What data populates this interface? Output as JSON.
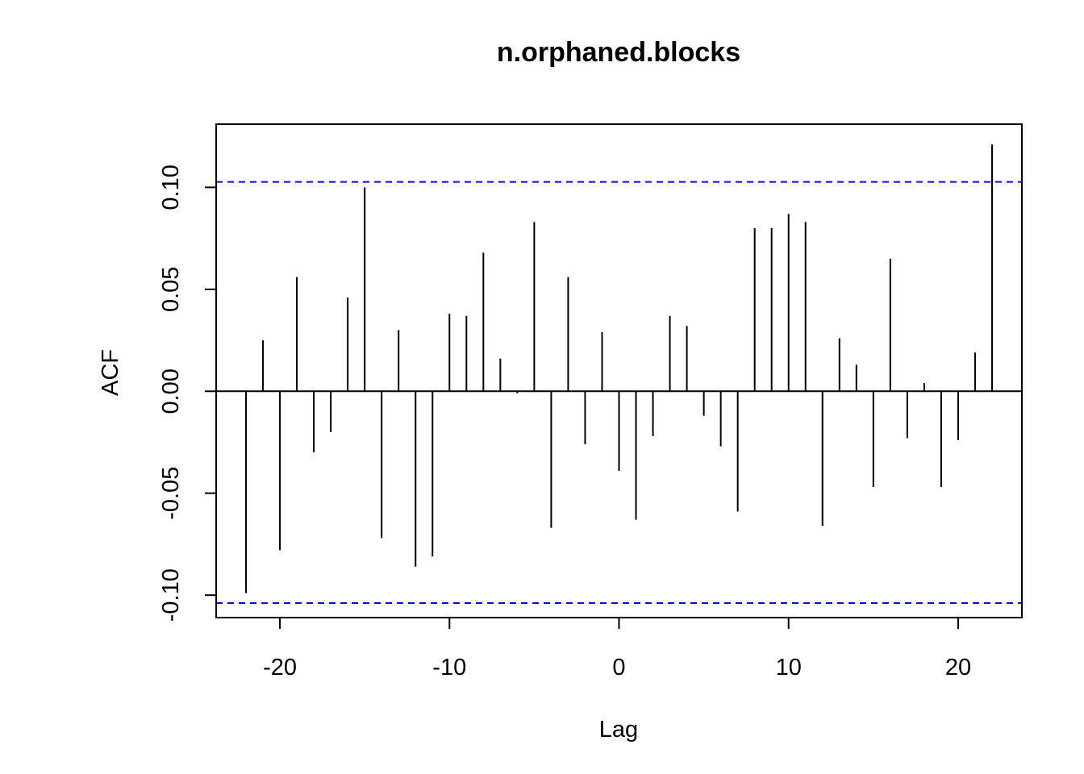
{
  "chart_data": {
    "type": "bar",
    "title": "n.orphaned.blocks",
    "xlabel": "Lag",
    "ylabel": "ACF",
    "xlim": [
      -23.76,
      23.76
    ],
    "ylim": [
      -0.111,
      0.131
    ],
    "x_ticks": [
      -20,
      -10,
      0,
      10,
      20
    ],
    "x_tick_labels": [
      "-20",
      "-10",
      "0",
      "10",
      "20"
    ],
    "y_ticks": [
      -0.1,
      -0.05,
      0.0,
      0.05,
      0.1
    ],
    "y_tick_labels": [
      "-0.10",
      "-0.05",
      "0.00",
      "0.05",
      "0.10"
    ],
    "confidence_bounds": [
      0.1027,
      -0.1039
    ],
    "confidence_color": "#0000ff",
    "grid": false,
    "lags": [
      -22,
      -21,
      -20,
      -19,
      -18,
      -17,
      -16,
      -15,
      -14,
      -13,
      -12,
      -11,
      -10,
      -9,
      -8,
      -7,
      -6,
      -5,
      -4,
      -3,
      -2,
      -1,
      0,
      1,
      2,
      3,
      4,
      5,
      6,
      7,
      8,
      9,
      10,
      11,
      12,
      13,
      14,
      15,
      16,
      17,
      18,
      19,
      20,
      21,
      22
    ],
    "values": [
      -0.099,
      0.025,
      -0.078,
      0.056,
      -0.03,
      -0.02,
      0.046,
      0.1,
      -0.072,
      0.03,
      -0.086,
      -0.081,
      0.038,
      0.037,
      0.068,
      0.016,
      -0.001,
      0.083,
      -0.067,
      0.056,
      -0.026,
      0.029,
      -0.039,
      -0.063,
      -0.022,
      0.037,
      0.032,
      -0.012,
      -0.027,
      -0.059,
      0.08,
      0.08,
      0.087,
      0.083,
      -0.066,
      0.026,
      0.013,
      -0.047,
      0.065,
      -0.023,
      0.004,
      -0.047,
      -0.024,
      0.019,
      0.121
    ]
  }
}
